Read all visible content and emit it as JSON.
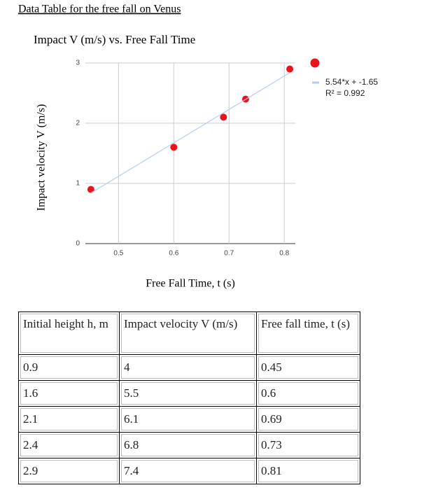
{
  "title": "Data Table for the free fall on Venus",
  "chart_data": {
    "type": "scatter",
    "title": "Impact V (m/s) vs. Free Fall Time",
    "x_label": "Free Fall Time, t (s)",
    "y_label": "Impact velocity V (m/s)",
    "xlim": [
      0.44,
      0.82
    ],
    "ylim": [
      0,
      3
    ],
    "xticks": [
      0.5,
      0.6,
      0.7,
      0.8
    ],
    "yticks": [
      0,
      1,
      2,
      3
    ],
    "grid": true,
    "series": [
      {
        "color": "#e8141b",
        "x": [
          0.45,
          0.6,
          0.69,
          0.73,
          0.81
        ],
        "values": [
          0.9,
          1.6,
          2.1,
          2.4,
          2.9
        ]
      },
      {
        "name": "5.54*x + -1.65",
        "r2": "R² = 0.992",
        "color": "#b6cdee",
        "line": true,
        "x": [
          0.45,
          0.81
        ],
        "values": [
          0.84,
          2.84
        ]
      }
    ]
  },
  "table": {
    "header": [
      "Initial height h, m",
      "Impact velocity V (m/s)",
      "Free fall time, t (s)"
    ],
    "rows": [
      [
        "0.9",
        "4",
        "0.45"
      ],
      [
        "1.6",
        "5.5",
        "0.6"
      ],
      [
        "2.1",
        "6.1",
        "0.69"
      ],
      [
        "2.4",
        "6.8",
        "0.73"
      ],
      [
        "2.9",
        "7.4",
        "0.81"
      ]
    ]
  }
}
